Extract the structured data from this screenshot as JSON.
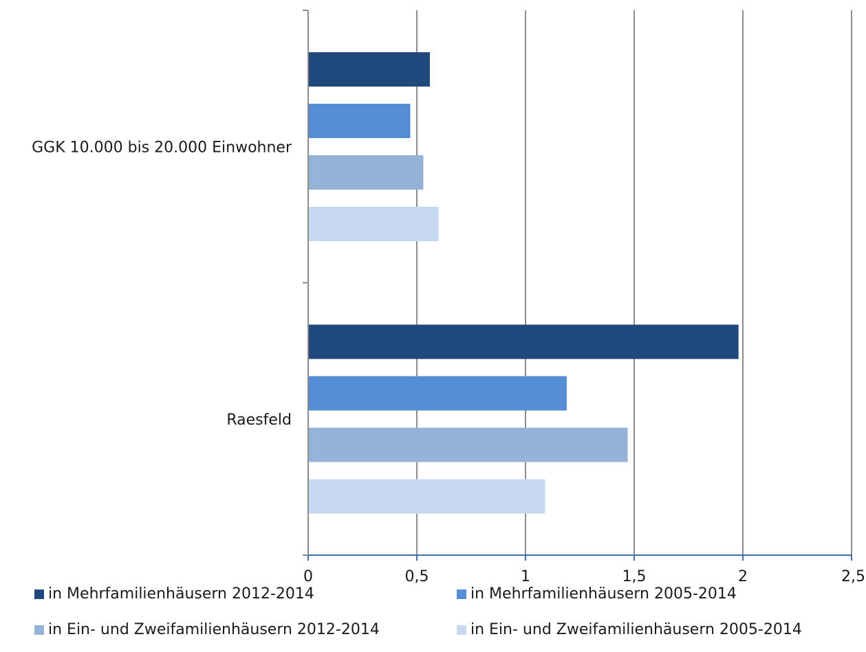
{
  "chart_data": {
    "type": "bar",
    "orientation": "horizontal",
    "categories": [
      "GGK 10.000 bis 20.000 Einwohner",
      "Raesfeld"
    ],
    "series": [
      {
        "name": "in Mehrfamilienhäusern 2012-2014",
        "color": "#1f497d",
        "values": [
          0.56,
          1.98
        ]
      },
      {
        "name": "in Mehrfamilienhäusern 2005-2014",
        "color": "#558ed5",
        "values": [
          0.47,
          1.19
        ]
      },
      {
        "name": "in Ein- und Zweifamilienhäusern 2012-2014",
        "color": "#95b3d7",
        "values": [
          0.53,
          1.47
        ]
      },
      {
        "name": "in Ein- und Zweifamilienhäusern 2005-2014",
        "color": "#c6d9f1",
        "values": [
          0.6,
          1.09
        ]
      }
    ],
    "xlim": [
      0,
      2.5
    ],
    "xticks": [
      0,
      0.5,
      1,
      1.5,
      2,
      2.5
    ],
    "xtick_labels": [
      "0",
      "0,5",
      "1",
      "1,5",
      "2",
      "2,5"
    ],
    "grid": "vertical",
    "legend_position": "bottom",
    "title": "",
    "xlabel": "",
    "ylabel": ""
  }
}
